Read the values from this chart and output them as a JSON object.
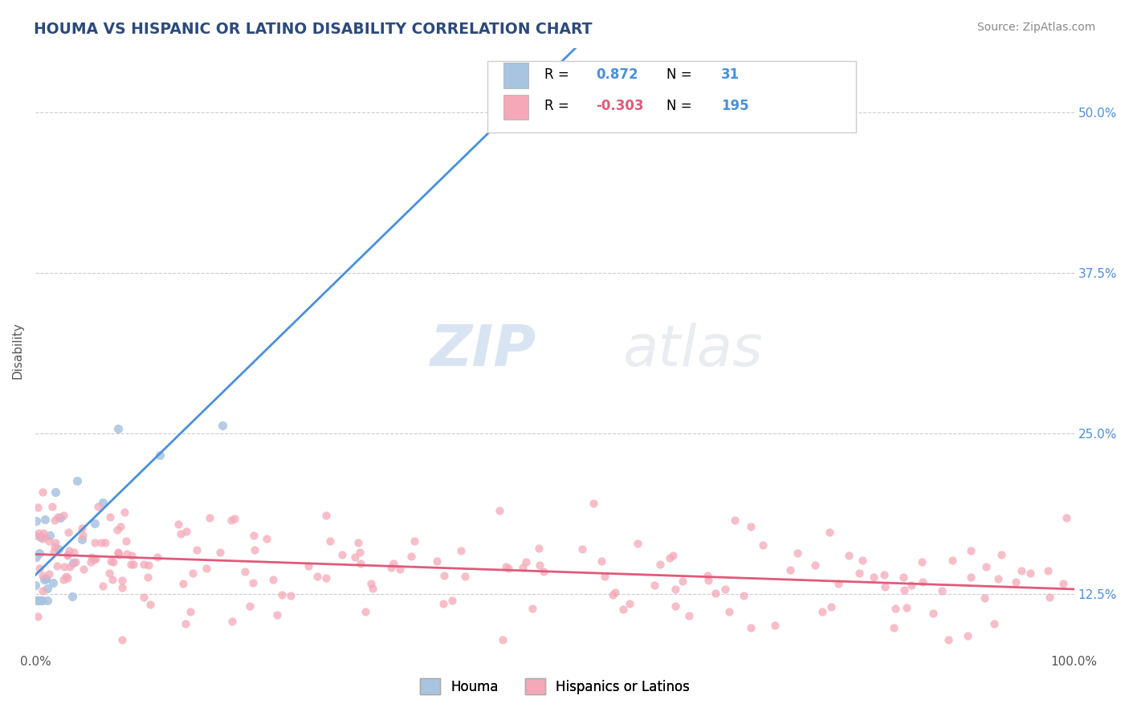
{
  "title": "HOUMA VS HISPANIC OR LATINO DISABILITY CORRELATION CHART",
  "source_text": "Source: ZipAtlas.com",
  "ylabel": "Disability",
  "xlim": [
    0.0,
    1.0
  ],
  "ylim": [
    0.08,
    0.55
  ],
  "yticks": [
    0.125,
    0.25,
    0.375,
    0.5
  ],
  "ytick_labels": [
    "12.5%",
    "25.0%",
    "37.5%",
    "50.0%"
  ],
  "houma_color": "#a8c4e0",
  "hispanic_color": "#f4a8b8",
  "houma_line_color": "#4a90d9",
  "hispanic_line_color": "#e05a7a",
  "R_houma": 0.872,
  "N_houma": 31,
  "R_hispanic": -0.303,
  "N_hispanic": 195,
  "title_color": "#2c4a7c",
  "source_color": "#888888",
  "watermark_zip": "ZIP",
  "watermark_atlas": "atlas",
  "grid_color": "#cccccc"
}
